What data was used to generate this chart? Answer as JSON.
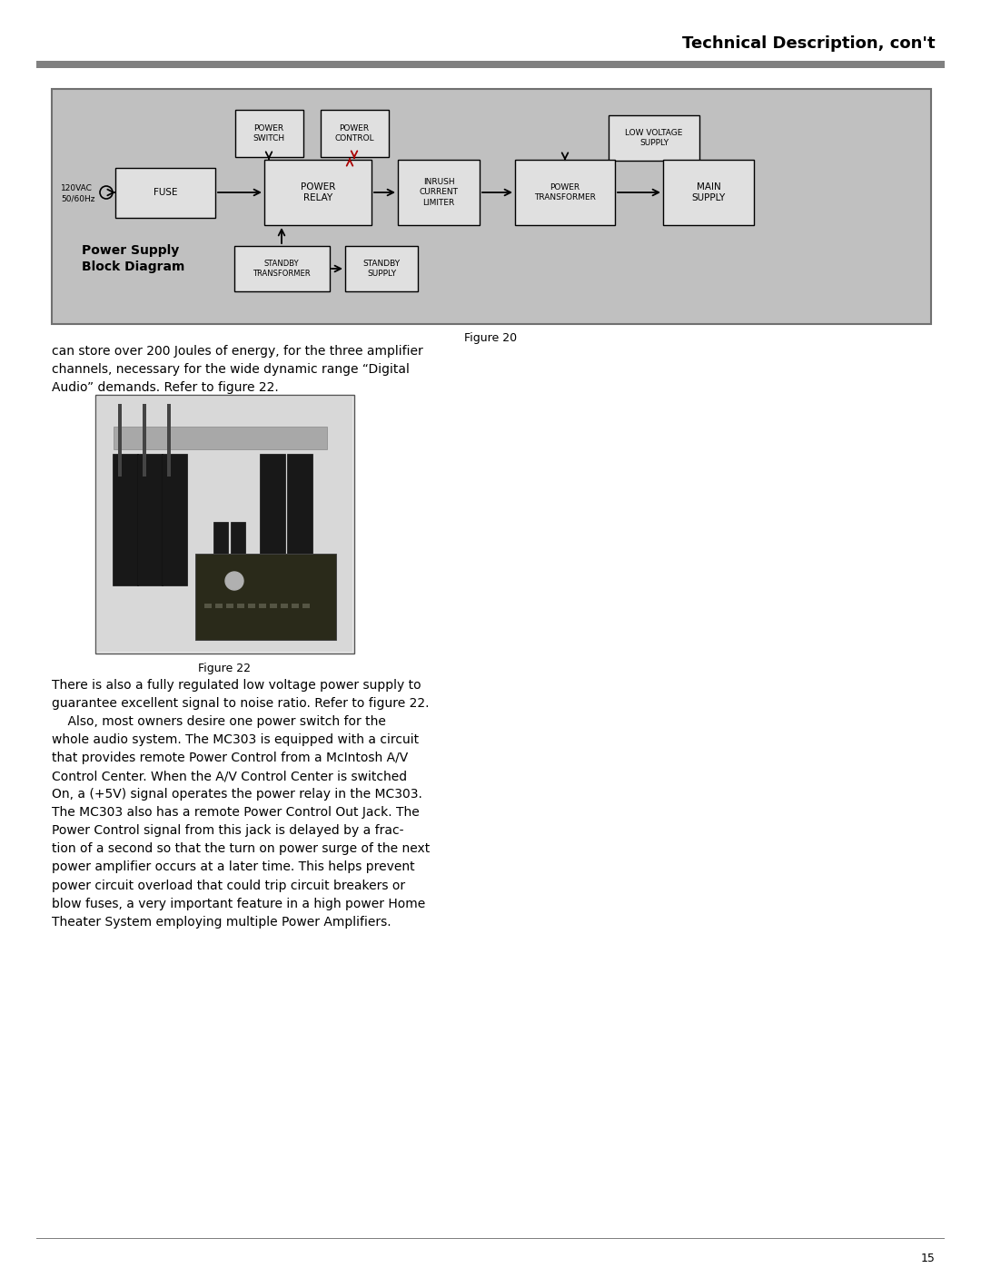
{
  "page_title": "Technical Description, con't",
  "page_number": "15",
  "bg_color": "#ffffff",
  "header_line_color": "#808080",
  "diagram_bg": "#c0c0c0",
  "diagram_border": "#707070",
  "box_fill": "#e0e0e0",
  "box_border": "#000000",
  "red_line": "#aa0000",
  "diagram_title": "Power Supply\nBlock Diagram",
  "figure20_caption": "Figure 20",
  "figure22_caption": "Figure 22",
  "text_paragraph1": "can store over 200 Joules of energy, for the three amplifier\nchannels, necessary for the wide dynamic range “Digital\nAudio” demands. Refer to figure 22.",
  "text_paragraph2": "There is also a fully regulated low voltage power supply to\nguarantee excellent signal to noise ratio. Refer to figure 22.\n    Also, most owners desire one power switch for the\nwhole audio system. The MC303 is equipped with a circuit\nthat provides remote Power Control from a McIntosh A/V\nControl Center. When the A/V Control Center is switched\nOn, a (+5V) signal operates the power relay in the MC303.\nThe MC303 also has a remote Power Control Out Jack. The\nPower Control signal from this jack is delayed by a frac-\ntion of a second so that the turn on power surge of the next\npower amplifier occurs at a later time. This helps prevent\npower circuit overload that could trip circuit breakers or\nblow fuses, a very important feature in a high power Home\nTheater System employing multiple Power Amplifiers."
}
